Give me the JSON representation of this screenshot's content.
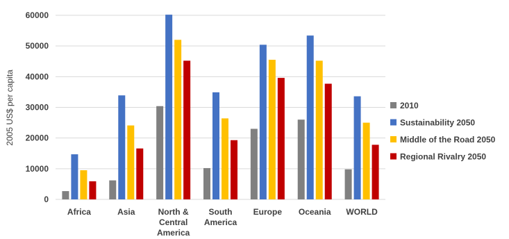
{
  "chart_data": {
    "type": "bar",
    "ylabel": "2005 US$ per capita",
    "ylim": [
      0,
      60000
    ],
    "yticks": [
      "0",
      "10000",
      "20000",
      "30000",
      "40000",
      "50000",
      "60000"
    ],
    "grid": true,
    "legend_position": "right",
    "categories": [
      [
        "Africa"
      ],
      [
        "Asia"
      ],
      [
        "North &",
        "Central",
        "America"
      ],
      [
        "South",
        "America"
      ],
      [
        "Europe"
      ],
      [
        "Oceania"
      ],
      [
        "WORLD"
      ]
    ],
    "series": [
      {
        "name": "2010",
        "color": "#808080",
        "values": [
          2700,
          6200,
          30400,
          10200,
          23000,
          26000,
          9800
        ]
      },
      {
        "name": "Sustainability 2050",
        "color": "#4472c4",
        "values": [
          14700,
          33900,
          60200,
          34900,
          50400,
          53400,
          33600
        ]
      },
      {
        "name": "Middle of the Road 2050",
        "color": "#ffc000",
        "values": [
          9500,
          24100,
          52000,
          26400,
          45500,
          45200,
          25000
        ]
      },
      {
        "name": "Regional Rivalry 2050",
        "color": "#c00000",
        "values": [
          5900,
          16600,
          45200,
          19300,
          39600,
          37700,
          17800
        ]
      }
    ]
  }
}
